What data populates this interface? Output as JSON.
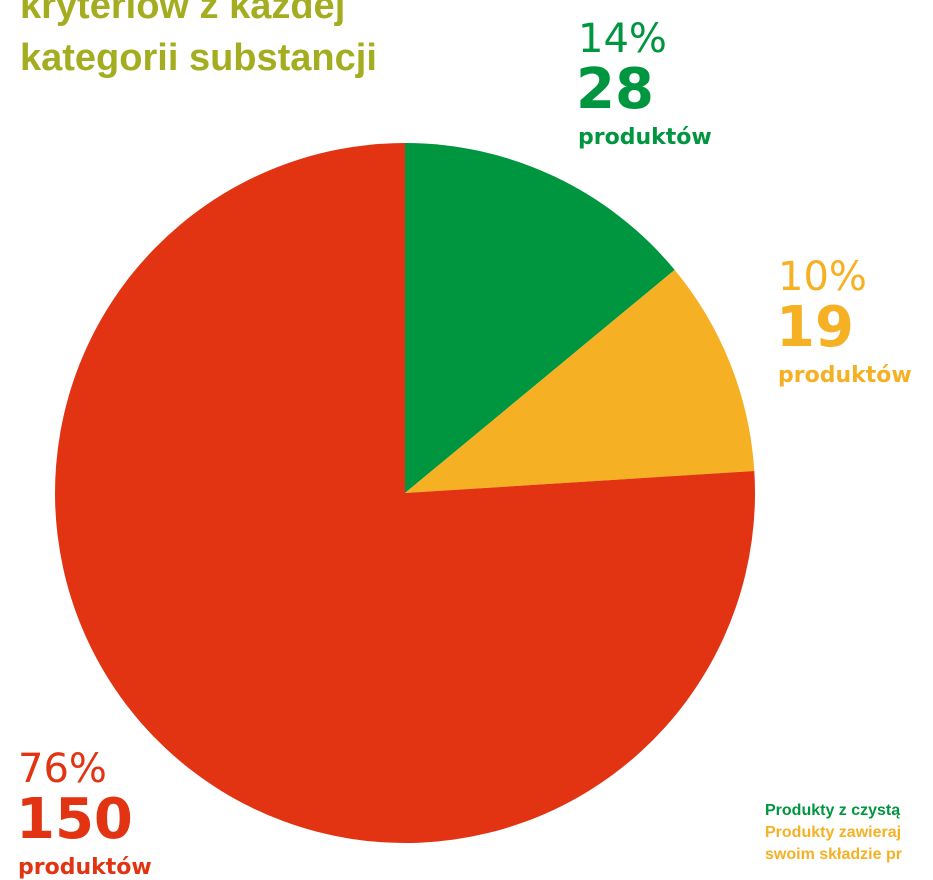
{
  "chart_data": {
    "type": "pie",
    "title_lines": [
      "kryteriów z każdej",
      "kategorii substancji"
    ],
    "values": [
      14,
      10,
      76
    ],
    "value_labels": [
      "14%",
      "10%",
      "76%"
    ],
    "counts": [
      28,
      19,
      150
    ],
    "units": [
      "produktów",
      "produktów",
      "produktów"
    ],
    "colors": [
      "#00963f",
      "#f6b024",
      "#e23412"
    ],
    "legend_lines": [
      {
        "text": "Produkty z czystą",
        "color": "#00963f"
      },
      {
        "text": "Produkty zawieraj",
        "color": "#f6b024"
      },
      {
        "text": "swoim składzie pr",
        "color": "#f6b024"
      }
    ],
    "title_color": "#a3ad1f"
  }
}
